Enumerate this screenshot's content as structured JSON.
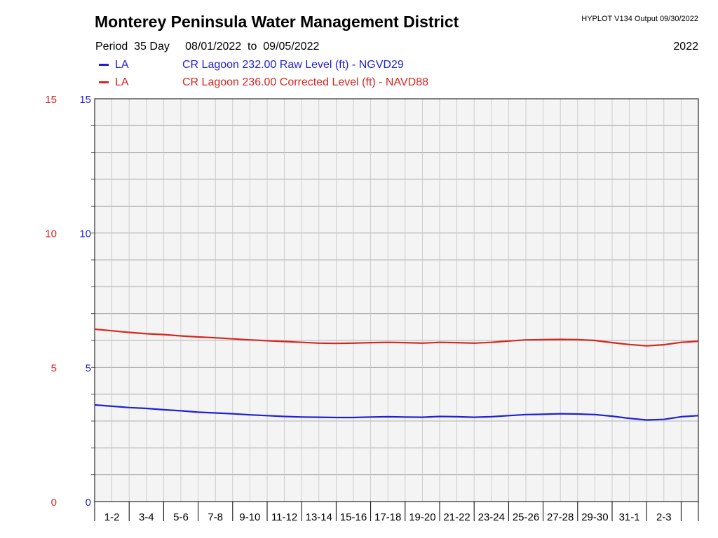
{
  "header": {
    "title": "Monterey Peninsula Water Management District",
    "version": "HYPLOT V134  Output 09/30/2022",
    "period_label": "Period",
    "period_days": "35 Day",
    "start_date": "08/01/2022",
    "to_label": "to",
    "end_date": "09/05/2022",
    "year": "2022"
  },
  "legend": [
    {
      "code": "LA",
      "description": "CR Lagoon  232.00 Raw Level (ft) - NGVD29",
      "color": "#1f1fd6"
    },
    {
      "code": "LA",
      "description": "CR Lagoon  236.00 Corrected Level (ft) - NAVD88",
      "color": "#d6261f"
    }
  ],
  "chart_data": {
    "type": "line",
    "title": "Monterey Peninsula Water Management District",
    "x_tick_labels": [
      "1-2",
      "3-4",
      "5-6",
      "7-8",
      "9-10",
      "11-12",
      "13-14",
      "15-16",
      "17-18",
      "19-20",
      "21-22",
      "23-24",
      "25-26",
      "27-28",
      "29-30",
      "31-1",
      "2-3"
    ],
    "y_left_ticks": [
      "15",
      "10",
      "5",
      "0"
    ],
    "y_right_ticks": [
      "15",
      "10",
      "5",
      "0"
    ],
    "ylim": [
      0,
      15
    ],
    "xlim_days": [
      0,
      35
    ],
    "grid": true,
    "series": [
      {
        "name": "CR Lagoon  232.00 Raw Level (ft) - NGVD29",
        "color": "#1f1fd6",
        "x_day": [
          0,
          1,
          2,
          3,
          4,
          5,
          6,
          7,
          8,
          9,
          10,
          11,
          12,
          13,
          14,
          15,
          16,
          17,
          18,
          19,
          20,
          21,
          22,
          23,
          24,
          25,
          26,
          27,
          28,
          29,
          30,
          31,
          32,
          33,
          34,
          35
        ],
        "values": [
          3.6,
          3.55,
          3.5,
          3.47,
          3.42,
          3.38,
          3.33,
          3.3,
          3.27,
          3.23,
          3.2,
          3.17,
          3.15,
          3.14,
          3.13,
          3.13,
          3.15,
          3.16,
          3.15,
          3.14,
          3.17,
          3.16,
          3.14,
          3.16,
          3.2,
          3.24,
          3.25,
          3.27,
          3.26,
          3.24,
          3.18,
          3.1,
          3.04,
          3.06,
          3.16,
          3.2
        ]
      },
      {
        "name": "CR Lagoon  236.00 Corrected Level (ft) - NAVD88",
        "color": "#d6261f",
        "x_day": [
          0,
          1,
          2,
          3,
          4,
          5,
          6,
          7,
          8,
          9,
          10,
          11,
          12,
          13,
          14,
          15,
          16,
          17,
          18,
          19,
          20,
          21,
          22,
          23,
          24,
          25,
          26,
          27,
          28,
          29,
          30,
          31,
          32,
          33,
          34,
          35
        ],
        "values": [
          6.42,
          6.36,
          6.3,
          6.25,
          6.22,
          6.17,
          6.13,
          6.1,
          6.06,
          6.02,
          5.99,
          5.96,
          5.93,
          5.9,
          5.89,
          5.9,
          5.92,
          5.93,
          5.92,
          5.9,
          5.93,
          5.92,
          5.9,
          5.93,
          5.98,
          6.02,
          6.03,
          6.04,
          6.03,
          6.0,
          5.92,
          5.85,
          5.8,
          5.84,
          5.93,
          5.97
        ]
      }
    ]
  }
}
